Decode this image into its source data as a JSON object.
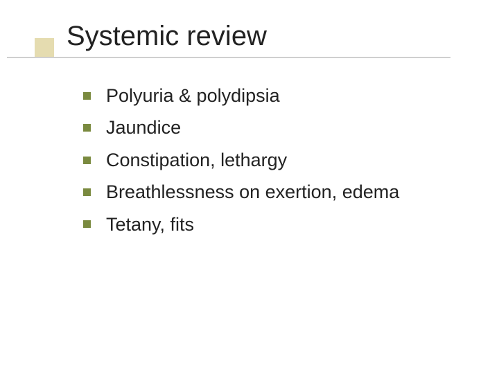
{
  "slide": {
    "title": "Systemic review",
    "title_color": "#222222",
    "title_fontsize": 40,
    "accent_square_color": "#d0c070",
    "accent_square_opacity": 0.55,
    "underline_color": "#cfcfcf",
    "background_color": "#ffffff",
    "bullets": [
      {
        "text": "Polyuria & polydipsia"
      },
      {
        "text": "Jaundice"
      },
      {
        "text": "Constipation, lethargy"
      },
      {
        "text": "Breathlessness on exertion, edema"
      },
      {
        "text": "Tetany, fits"
      }
    ],
    "bullet_square_color": "#7a8a3f",
    "bullet_text_fontsize": 27,
    "bullet_text_color": "#222222"
  }
}
